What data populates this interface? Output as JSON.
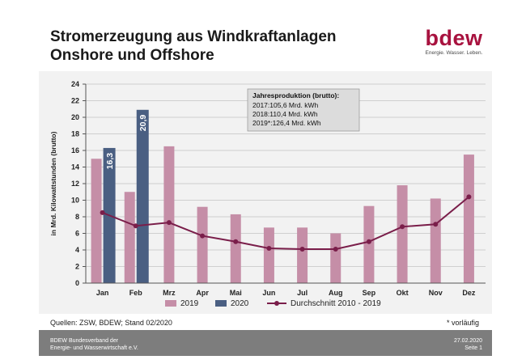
{
  "header": {
    "title_line1": "Stromerzeugung aus Windkraftanlagen",
    "title_line2": "Onshore und Offshore",
    "logo_text": "bdew",
    "logo_tagline": "Energie. Wasser. Leben."
  },
  "colors": {
    "bar_2019": "#c58ea7",
    "bar_2020": "#4a5f82",
    "line_avg": "#7a1e4a",
    "plot_bg": "#f2f2f2",
    "grid": "#cfcfcf",
    "annotation_bg": "#dcdcdc"
  },
  "chart_data": {
    "type": "bar",
    "categories": [
      "Jan",
      "Feb",
      "Mrz",
      "Apr",
      "Mai",
      "Jun",
      "Jul",
      "Aug",
      "Sep",
      "Okt",
      "Nov",
      "Dez"
    ],
    "series": [
      {
        "name": "2019",
        "kind": "bar",
        "values": [
          15.0,
          11.0,
          16.5,
          9.2,
          8.3,
          6.7,
          6.7,
          6.0,
          9.3,
          11.8,
          10.2,
          15.5
        ]
      },
      {
        "name": "2020",
        "kind": "bar",
        "values": [
          16.3,
          20.9,
          null,
          null,
          null,
          null,
          null,
          null,
          null,
          null,
          null,
          null
        ],
        "data_labels": [
          "16,3",
          "20,9"
        ]
      },
      {
        "name": "Durchschnitt 2010 - 2019",
        "kind": "line",
        "values": [
          8.5,
          6.9,
          7.3,
          5.7,
          5.0,
          4.2,
          4.1,
          4.1,
          5.0,
          6.8,
          7.1,
          10.4
        ]
      }
    ],
    "ylabel": "in Mrd. Kilowattstunden (brutto)",
    "xlabel": "",
    "ylim": [
      0,
      24
    ],
    "yticks": [
      0,
      2,
      4,
      6,
      8,
      10,
      12,
      14,
      16,
      18,
      20,
      22,
      24
    ],
    "grid": true,
    "legend_position": "bottom",
    "annotation": {
      "title": "Jahresproduktion (brutto):",
      "lines": [
        "2017:105,6 Mrd. kWh",
        "2018:110,4 Mrd. kWh",
        "2019*:126,4 Mrd. kWh"
      ]
    }
  },
  "notes": {
    "sources": "Quellen: ZSW, BDEW; Stand 02/2020",
    "footnote": "* vorläufig"
  },
  "footer": {
    "org_line1": "BDEW Bundesverband der",
    "org_line2": "Energie- und Wasserwirtschaft e.V.",
    "date": "27.02.2020",
    "page": "Seite 1"
  }
}
